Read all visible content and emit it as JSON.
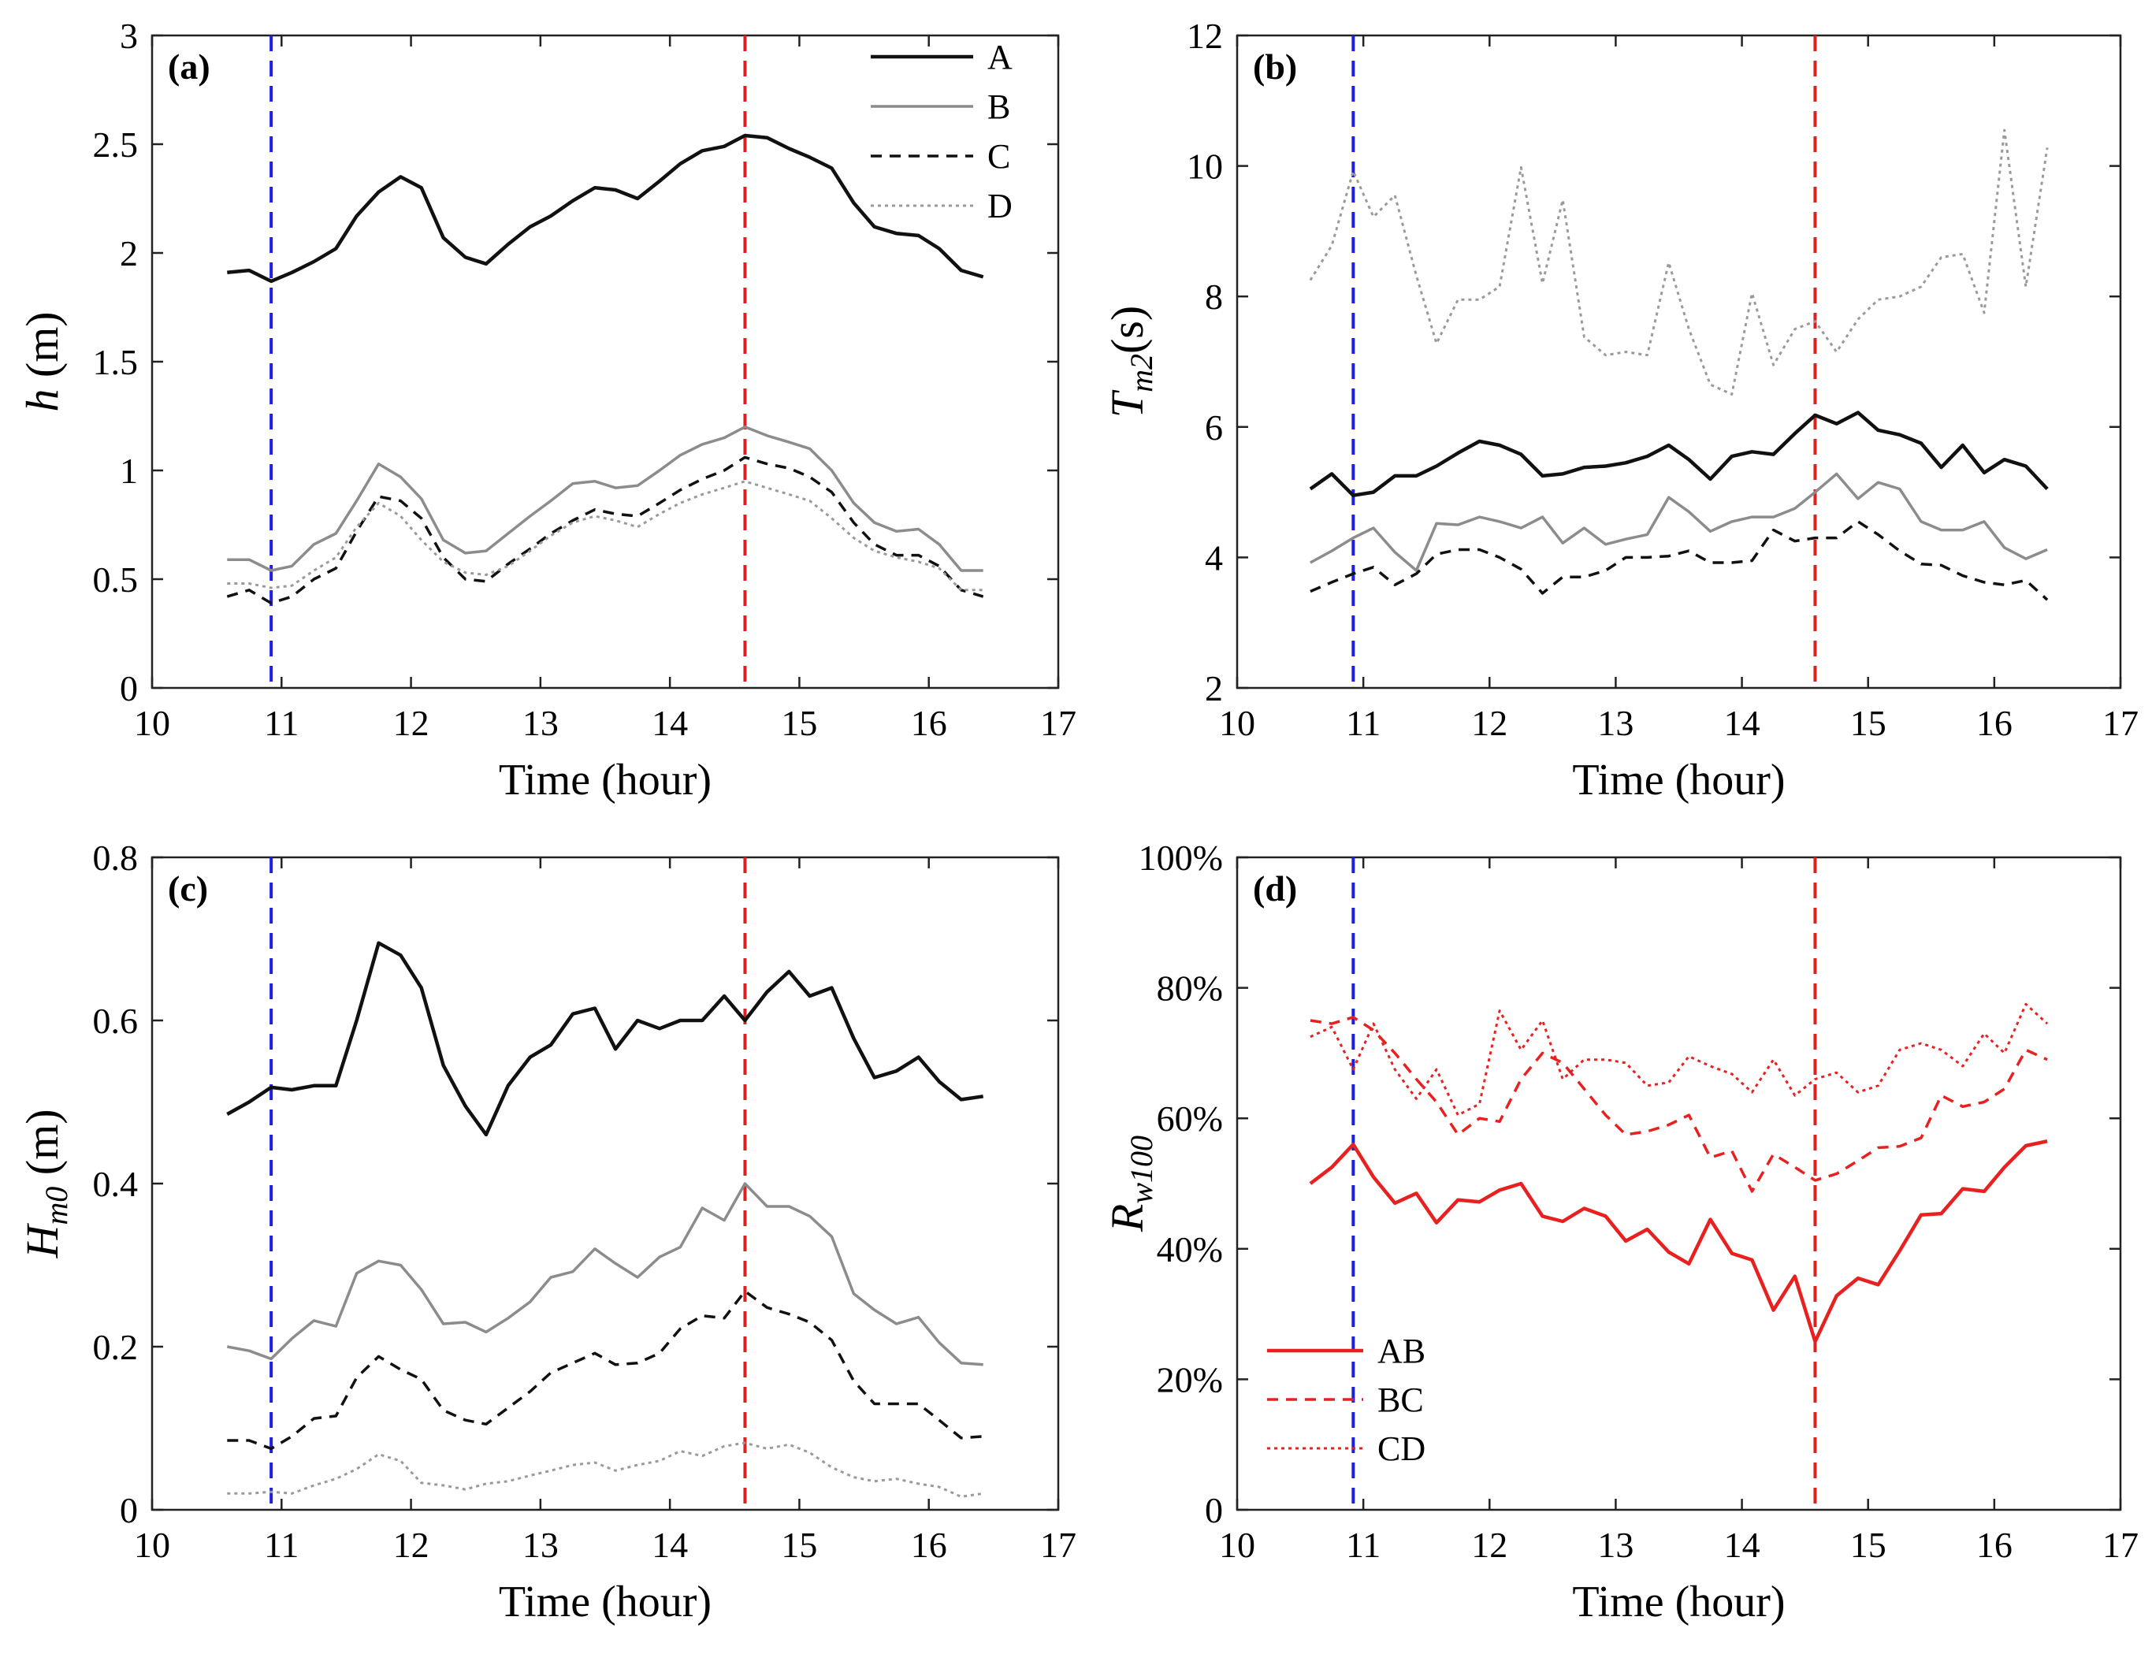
{
  "chart_data": [
    {
      "panel": "(a)",
      "type": "line",
      "ylabel_symbol": "h",
      "ylabel_unit": " (m)",
      "xlabel": "Time (hour)",
      "xlim": [
        10,
        17
      ],
      "ylim": [
        0,
        3
      ],
      "xticks": [
        10,
        11,
        12,
        13,
        14,
        15,
        16,
        17
      ],
      "yticks": [
        0,
        0.5,
        1,
        1.5,
        2,
        2.5,
        3
      ],
      "yticklabels": [
        "0",
        "0.5",
        "1",
        "1.5",
        "2",
        "2.5",
        "3"
      ],
      "vlines": [
        {
          "x": 10.92,
          "color": "#1f1fe0"
        },
        {
          "x": 14.58,
          "color": "#e02020"
        }
      ],
      "legend": "top-right",
      "x": [
        10.58,
        10.75,
        10.92,
        11.08,
        11.25,
        11.42,
        11.58,
        11.75,
        11.92,
        12.08,
        12.25,
        12.42,
        12.58,
        12.75,
        12.92,
        13.08,
        13.25,
        13.42,
        13.58,
        13.75,
        13.92,
        14.08,
        14.25,
        14.42,
        14.58,
        14.75,
        14.92,
        15.08,
        15.25,
        15.42,
        15.58,
        15.75,
        15.92,
        16.08,
        16.25,
        16.42
      ],
      "series": [
        {
          "name": "A",
          "color": "#111111",
          "dash": "",
          "width": 4.5,
          "values": [
            1.91,
            1.92,
            1.87,
            1.91,
            1.96,
            2.02,
            2.17,
            2.28,
            2.35,
            2.3,
            2.07,
            1.98,
            1.95,
            2.04,
            2.12,
            2.17,
            2.24,
            2.3,
            2.29,
            2.25,
            2.33,
            2.41,
            2.47,
            2.49,
            2.54,
            2.53,
            2.48,
            2.44,
            2.39,
            2.23,
            2.12,
            2.09,
            2.08,
            2.02,
            1.92,
            1.89
          ]
        },
        {
          "name": "B",
          "color": "#8c8c8c",
          "dash": "",
          "width": 3.5,
          "values": [
            0.59,
            0.59,
            0.54,
            0.56,
            0.66,
            0.71,
            0.86,
            1.03,
            0.97,
            0.87,
            0.68,
            0.62,
            0.63,
            0.71,
            0.79,
            0.86,
            0.94,
            0.95,
            0.92,
            0.93,
            1.0,
            1.07,
            1.12,
            1.15,
            1.2,
            1.16,
            1.13,
            1.1,
            1.0,
            0.85,
            0.76,
            0.72,
            0.73,
            0.66,
            0.54,
            0.54
          ]
        },
        {
          "name": "C",
          "color": "#111111",
          "dash": "14,10",
          "width": 3.5,
          "values": [
            0.42,
            0.45,
            0.39,
            0.42,
            0.5,
            0.55,
            0.72,
            0.88,
            0.86,
            0.78,
            0.6,
            0.5,
            0.49,
            0.57,
            0.64,
            0.71,
            0.77,
            0.82,
            0.8,
            0.79,
            0.85,
            0.91,
            0.96,
            1.0,
            1.06,
            1.03,
            1.01,
            0.97,
            0.9,
            0.76,
            0.66,
            0.61,
            0.61,
            0.56,
            0.45,
            0.42
          ]
        },
        {
          "name": "D",
          "color": "#9a9a9a",
          "dash": "4,5",
          "width": 3,
          "values": [
            0.48,
            0.48,
            0.46,
            0.47,
            0.54,
            0.6,
            0.74,
            0.85,
            0.79,
            0.68,
            0.58,
            0.53,
            0.52,
            0.56,
            0.63,
            0.7,
            0.76,
            0.79,
            0.77,
            0.74,
            0.8,
            0.85,
            0.89,
            0.92,
            0.95,
            0.92,
            0.89,
            0.86,
            0.78,
            0.69,
            0.63,
            0.6,
            0.58,
            0.55,
            0.45,
            0.45
          ]
        }
      ]
    },
    {
      "panel": "(b)",
      "type": "line",
      "ylabel_symbol": "T",
      "ylabel_sub": "m2",
      "ylabel_unit": "(s)",
      "xlabel": "Time (hour)",
      "xlim": [
        10,
        17
      ],
      "ylim": [
        2,
        12
      ],
      "xticks": [
        10,
        11,
        12,
        13,
        14,
        15,
        16,
        17
      ],
      "yticks": [
        2,
        4,
        6,
        8,
        10,
        12
      ],
      "yticklabels": [
        "2",
        "4",
        "6",
        "8",
        "10",
        "12"
      ],
      "vlines": [
        {
          "x": 10.92,
          "color": "#1f1fe0"
        },
        {
          "x": 14.58,
          "color": "#e02020"
        }
      ],
      "x": [
        10.58,
        10.75,
        10.92,
        11.08,
        11.25,
        11.42,
        11.58,
        11.75,
        11.92,
        12.08,
        12.25,
        12.42,
        12.58,
        12.75,
        12.92,
        13.08,
        13.25,
        13.42,
        13.58,
        13.75,
        13.92,
        14.08,
        14.25,
        14.42,
        14.58,
        14.75,
        14.92,
        15.08,
        15.25,
        15.42,
        15.58,
        15.75,
        15.92,
        16.08,
        16.25,
        16.42
      ],
      "series": [
        {
          "name": "A",
          "color": "#111111",
          "dash": "",
          "width": 4.5,
          "values": [
            5.05,
            5.28,
            4.95,
            5.0,
            5.25,
            5.25,
            5.4,
            5.6,
            5.78,
            5.72,
            5.58,
            5.25,
            5.28,
            5.38,
            5.4,
            5.45,
            5.55,
            5.72,
            5.5,
            5.2,
            5.55,
            5.62,
            5.58,
            5.9,
            6.18,
            6.05,
            6.22,
            5.95,
            5.88,
            5.75,
            5.38,
            5.72,
            5.3,
            5.5,
            5.4,
            5.05
          ]
        },
        {
          "name": "B",
          "color": "#8c8c8c",
          "dash": "",
          "width": 3.5,
          "values": [
            3.92,
            4.1,
            4.3,
            4.45,
            4.08,
            3.8,
            4.52,
            4.5,
            4.62,
            4.55,
            4.45,
            4.62,
            4.22,
            4.45,
            4.2,
            4.28,
            4.35,
            4.92,
            4.7,
            4.4,
            4.55,
            4.62,
            4.62,
            4.75,
            5.0,
            5.28,
            4.9,
            5.15,
            5.05,
            4.55,
            4.42,
            4.42,
            4.55,
            4.15,
            3.98,
            4.12
          ]
        },
        {
          "name": "C",
          "color": "#111111",
          "dash": "14,10",
          "width": 3.5,
          "values": [
            3.48,
            3.62,
            3.75,
            3.85,
            3.58,
            3.75,
            4.05,
            4.12,
            4.12,
            4.0,
            3.82,
            3.45,
            3.7,
            3.7,
            3.8,
            4.0,
            4.0,
            4.02,
            4.1,
            3.92,
            3.92,
            3.95,
            4.42,
            4.25,
            4.3,
            4.3,
            4.55,
            4.35,
            4.1,
            3.9,
            3.88,
            3.72,
            3.62,
            3.58,
            3.65,
            3.35
          ]
        },
        {
          "name": "D",
          "color": "#9a9a9a",
          "dash": "4,5",
          "width": 3,
          "values": [
            8.25,
            8.78,
            9.92,
            9.22,
            9.55,
            8.32,
            7.28,
            7.95,
            7.95,
            8.15,
            9.98,
            8.2,
            9.48,
            7.38,
            7.1,
            7.15,
            7.1,
            8.52,
            7.5,
            6.65,
            6.5,
            8.05,
            6.95,
            7.5,
            7.62,
            7.15,
            7.65,
            7.95,
            8.0,
            8.15,
            8.6,
            8.65,
            7.75,
            10.55,
            8.15,
            10.28
          ]
        }
      ]
    },
    {
      "panel": "(c)",
      "type": "line",
      "ylabel_symbol": "H",
      "ylabel_sub": "m0",
      "ylabel_unit": " (m)",
      "xlabel": "Time (hour)",
      "xlim": [
        10,
        17
      ],
      "ylim": [
        0,
        0.8
      ],
      "xticks": [
        10,
        11,
        12,
        13,
        14,
        15,
        16,
        17
      ],
      "yticks": [
        0,
        0.2,
        0.4,
        0.6,
        0.8
      ],
      "yticklabels": [
        "0",
        "0.2",
        "0.4",
        "0.6",
        "0.8"
      ],
      "vlines": [
        {
          "x": 10.92,
          "color": "#1f1fe0"
        },
        {
          "x": 14.58,
          "color": "#e02020"
        }
      ],
      "x": [
        10.58,
        10.75,
        10.92,
        11.08,
        11.25,
        11.42,
        11.58,
        11.75,
        11.92,
        12.08,
        12.25,
        12.42,
        12.58,
        12.75,
        12.92,
        13.08,
        13.25,
        13.42,
        13.58,
        13.75,
        13.92,
        14.08,
        14.25,
        14.42,
        14.58,
        14.75,
        14.92,
        15.08,
        15.25,
        15.42,
        15.58,
        15.75,
        15.92,
        16.08,
        16.25,
        16.42
      ],
      "series": [
        {
          "name": "A",
          "color": "#111111",
          "dash": "",
          "width": 4.5,
          "values": [
            0.485,
            0.5,
            0.518,
            0.515,
            0.52,
            0.52,
            0.6,
            0.695,
            0.68,
            0.64,
            0.545,
            0.495,
            0.46,
            0.52,
            0.555,
            0.57,
            0.608,
            0.615,
            0.565,
            0.6,
            0.59,
            0.6,
            0.6,
            0.63,
            0.6,
            0.635,
            0.66,
            0.63,
            0.64,
            0.578,
            0.53,
            0.538,
            0.555,
            0.525,
            0.503,
            0.507
          ]
        },
        {
          "name": "B",
          "color": "#8c8c8c",
          "dash": "",
          "width": 3.5,
          "values": [
            0.2,
            0.195,
            0.185,
            0.21,
            0.232,
            0.225,
            0.29,
            0.305,
            0.3,
            0.27,
            0.228,
            0.23,
            0.218,
            0.235,
            0.255,
            0.285,
            0.292,
            0.32,
            0.302,
            0.285,
            0.31,
            0.322,
            0.37,
            0.355,
            0.4,
            0.372,
            0.372,
            0.36,
            0.335,
            0.265,
            0.245,
            0.228,
            0.236,
            0.205,
            0.18,
            0.178
          ]
        },
        {
          "name": "C",
          "color": "#111111",
          "dash": "14,10",
          "width": 3.5,
          "values": [
            0.085,
            0.085,
            0.075,
            0.09,
            0.112,
            0.115,
            0.162,
            0.188,
            0.172,
            0.16,
            0.122,
            0.11,
            0.105,
            0.125,
            0.145,
            0.168,
            0.18,
            0.192,
            0.178,
            0.18,
            0.192,
            0.222,
            0.238,
            0.235,
            0.268,
            0.248,
            0.24,
            0.23,
            0.208,
            0.158,
            0.13,
            0.13,
            0.13,
            0.11,
            0.088,
            0.09
          ]
        },
        {
          "name": "D",
          "color": "#9a9a9a",
          "dash": "4,5",
          "width": 3,
          "values": [
            0.02,
            0.02,
            0.022,
            0.02,
            0.03,
            0.038,
            0.05,
            0.068,
            0.06,
            0.033,
            0.03,
            0.025,
            0.032,
            0.035,
            0.042,
            0.048,
            0.055,
            0.058,
            0.048,
            0.055,
            0.06,
            0.072,
            0.066,
            0.078,
            0.082,
            0.075,
            0.08,
            0.07,
            0.052,
            0.04,
            0.035,
            0.038,
            0.032,
            0.028,
            0.016,
            0.02
          ]
        }
      ]
    },
    {
      "panel": "(d)",
      "type": "line",
      "ylabel_symbol": "R",
      "ylabel_sub": "w100",
      "ylabel_unit": "",
      "xlabel": "Time (hour)",
      "xlim": [
        10,
        17
      ],
      "ylim": [
        0,
        100
      ],
      "xticks": [
        10,
        11,
        12,
        13,
        14,
        15,
        16,
        17
      ],
      "yticks": [
        0,
        20,
        40,
        60,
        80,
        100
      ],
      "yticklabels": [
        "0",
        "20%",
        "40%",
        "60%",
        "80%",
        "100%"
      ],
      "vlines": [
        {
          "x": 10.92,
          "color": "#1f1fe0"
        },
        {
          "x": 14.58,
          "color": "#e02020"
        }
      ],
      "legend": "bottom-left",
      "x": [
        10.58,
        10.75,
        10.92,
        11.08,
        11.25,
        11.42,
        11.58,
        11.75,
        11.92,
        12.08,
        12.25,
        12.42,
        12.58,
        12.75,
        12.92,
        13.08,
        13.25,
        13.42,
        13.58,
        13.75,
        13.92,
        14.08,
        14.25,
        14.42,
        14.58,
        14.75,
        14.92,
        15.08,
        15.25,
        15.42,
        15.58,
        15.75,
        15.92,
        16.08,
        16.25,
        16.42
      ],
      "series": [
        {
          "name": "AB",
          "color": "#e82020",
          "dash": "",
          "width": 4.5,
          "values": [
            50,
            52.5,
            56,
            51,
            47,
            48.5,
            44,
            47.5,
            47.2,
            49,
            50,
            45,
            44.2,
            46.2,
            45,
            41.2,
            43,
            39.5,
            37.7,
            44.5,
            39.3,
            38.3,
            30.6,
            35.8,
            25.8,
            32.8,
            35.5,
            34.5,
            39.7,
            45.2,
            45.4,
            49.2,
            48.8,
            52.5,
            55.8,
            56.5
          ]
        },
        {
          "name": "BC",
          "color": "#e82020",
          "dash": "14,10",
          "width": 3.5,
          "values": [
            75,
            74.5,
            75.5,
            73.5,
            70,
            66,
            62.5,
            57.5,
            60,
            59.5,
            66,
            70,
            68.5,
            64.5,
            60.5,
            57.5,
            58,
            59,
            60.5,
            54,
            55,
            48.8,
            54.5,
            52.5,
            50.5,
            51.5,
            53.5,
            55.5,
            55.7,
            57,
            63.5,
            61.8,
            62.5,
            64.5,
            70.5,
            69
          ]
        },
        {
          "name": "CD",
          "color": "#e82020",
          "dash": "4,5",
          "width": 3,
          "values": [
            72.5,
            74,
            67.5,
            74.5,
            67.5,
            63,
            67.5,
            60.5,
            62.2,
            76.5,
            70.5,
            75,
            66,
            69,
            69,
            68.5,
            65,
            65.5,
            69.5,
            68,
            66.8,
            64,
            69,
            63.5,
            66,
            67,
            64,
            65,
            70.5,
            71.5,
            70.5,
            68,
            73,
            70,
            77.5,
            74.5
          ]
        }
      ]
    }
  ]
}
